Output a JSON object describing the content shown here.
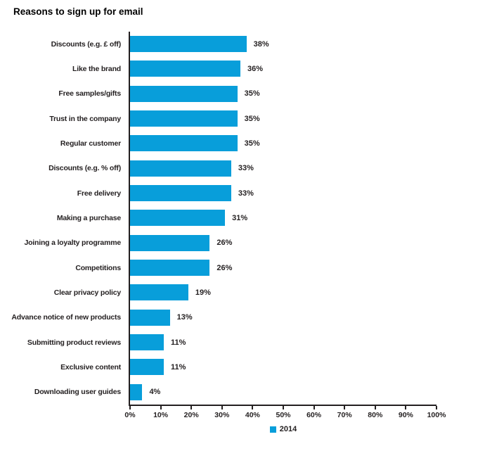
{
  "title": "Reasons to sign up for email",
  "chart_data": {
    "type": "bar",
    "orientation": "horizontal",
    "title": "Reasons to sign up for email",
    "categories": [
      "Discounts (e.g. £ off)",
      "Like the brand",
      "Free samples/gifts",
      "Trust in the company",
      "Regular customer",
      "Discounts (e.g. % off)",
      "Free delivery",
      "Making a purchase",
      "Joining a loyalty programme",
      "Competitions",
      "Clear privacy policy",
      "Advance notice of new products",
      "Submitting product reviews",
      "Exclusive content",
      "Downloading user guides"
    ],
    "series": [
      {
        "name": "2014",
        "values": [
          38,
          36,
          35,
          35,
          35,
          33,
          33,
          31,
          26,
          26,
          19,
          13,
          11,
          11,
          4
        ]
      }
    ],
    "data_labels": [
      "38%",
      "36%",
      "35%",
      "35%",
      "35%",
      "33%",
      "33%",
      "31%",
      "26%",
      "26%",
      "19%",
      "13%",
      "11%",
      "11%",
      "4%"
    ],
    "xlim": [
      0,
      100
    ],
    "x_ticks": [
      "0%",
      "10%",
      "20%",
      "30%",
      "40%",
      "50%",
      "60%",
      "70%",
      "80%",
      "90%",
      "100%"
    ],
    "grid": false,
    "legend": {
      "label": "2014",
      "position": "bottom-center"
    },
    "colors": {
      "bar": "#089EDA",
      "axis": "#231F20",
      "text": "#231F20"
    }
  }
}
